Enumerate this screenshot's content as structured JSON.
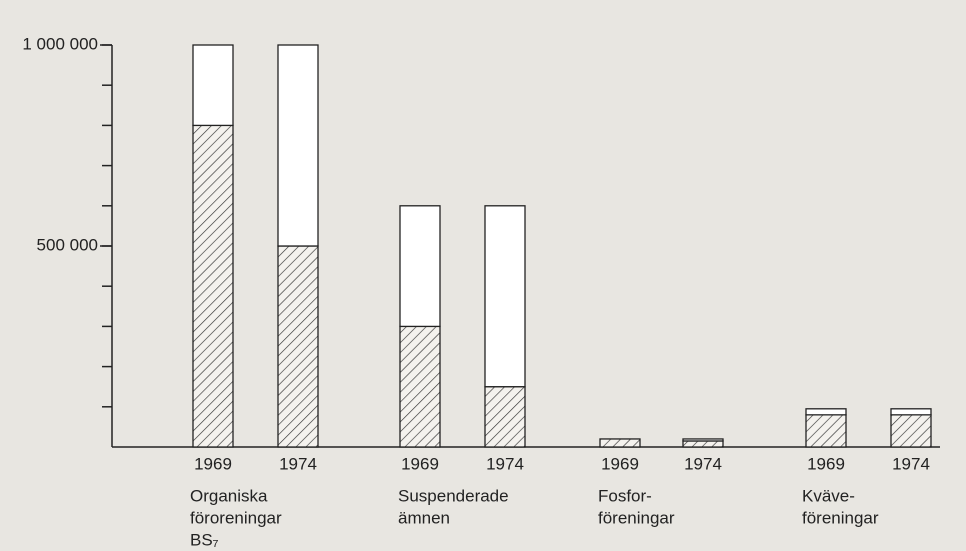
{
  "chart_data": {
    "type": "stacked-bar",
    "categories": [
      "1969",
      "1974",
      "1969",
      "1974",
      "1969",
      "1974",
      "1969",
      "1974"
    ],
    "groups": [
      {
        "lines": [
          "Organiska",
          "föroreningar",
          "BS₇"
        ]
      },
      {
        "lines": [
          "Suspenderade",
          "ämnen"
        ]
      },
      {
        "lines": [
          "Fosfor-",
          "föreningar"
        ]
      },
      {
        "lines": [
          "Kväve-",
          "föreningar"
        ]
      }
    ],
    "series": [
      {
        "color": "#333333",
        "pattern": "hatch",
        "values": [
          800000,
          500000,
          300000,
          150000,
          20000,
          15000,
          80000,
          80000
        ]
      },
      {
        "color": "#ffffff",
        "values": [
          200000,
          500000,
          300000,
          450000,
          0,
          5000,
          15000,
          15000
        ]
      }
    ],
    "ylim": [
      0,
      1000000
    ],
    "yticks": [
      {
        "value": 500000,
        "label": "500 000"
      },
      {
        "value": 1000000,
        "label": "1 000 000"
      }
    ],
    "minor_yticks": [
      100000,
      200000,
      300000,
      400000,
      500000,
      600000,
      700000,
      800000,
      900000,
      1000000
    ]
  }
}
